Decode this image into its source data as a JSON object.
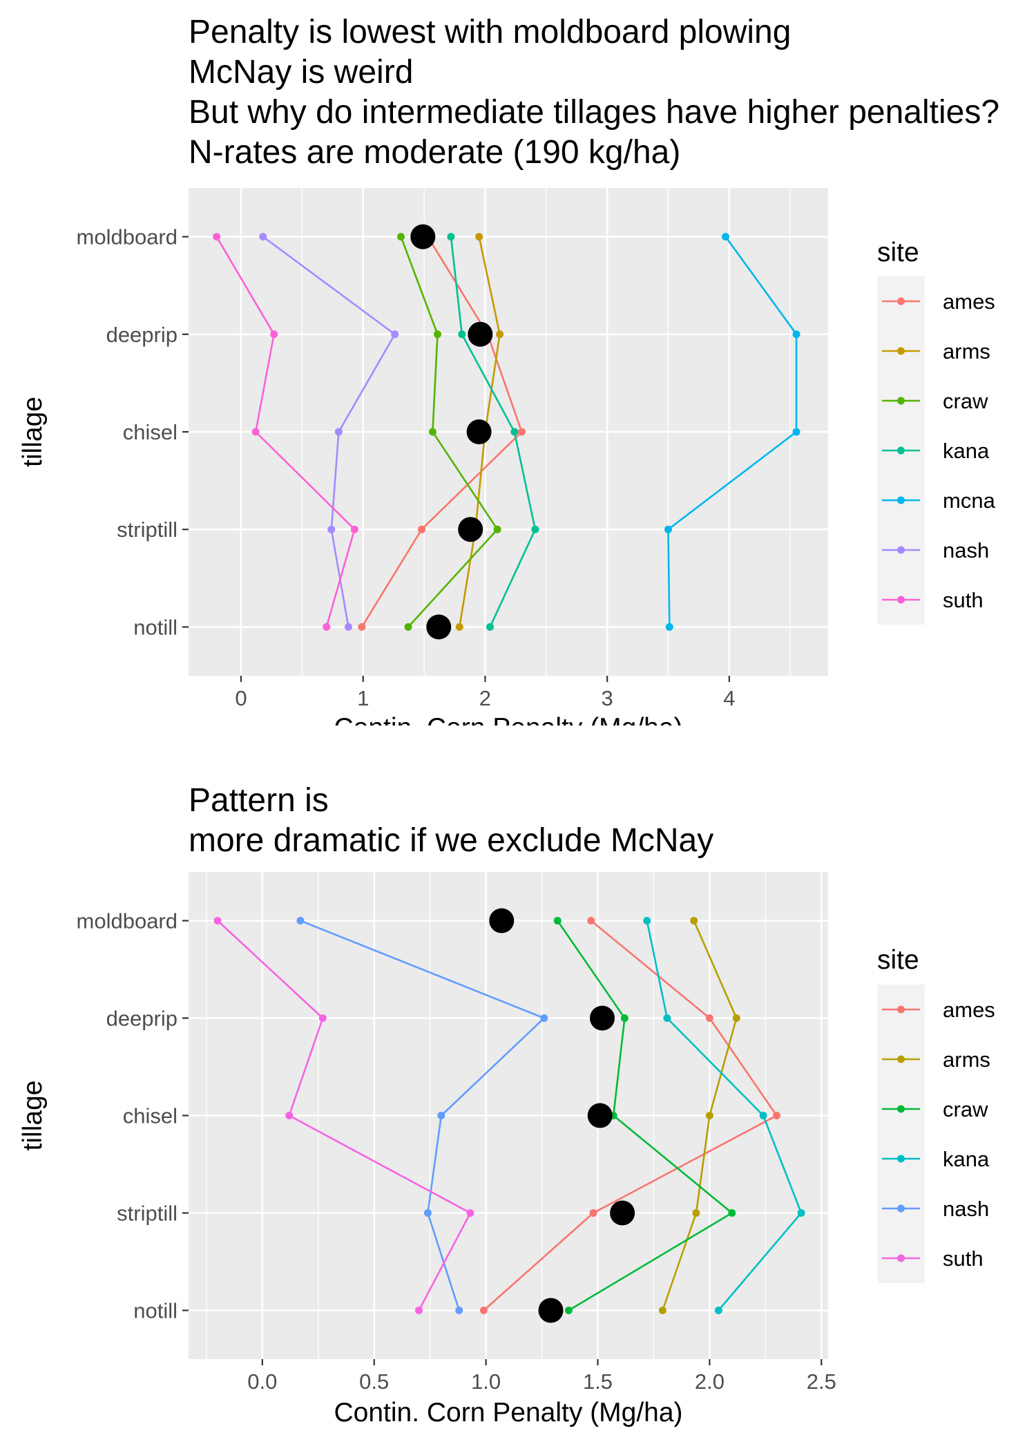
{
  "chart_data": [
    {
      "type": "line",
      "title": "Penalty is lowest with moldboard plowing\nMcNay is weird\nBut why do intermediate tillages have higher penalties?\nN-rates are moderate (190 kg/ha)",
      "xlabel": "Contin. Corn Penalty (Mg/ha)",
      "ylabel": "tillage",
      "categories": [
        "moldboard",
        "deeprip",
        "chisel",
        "striptill",
        "notill"
      ],
      "xlim": [
        -0.43,
        4.81
      ],
      "xticks": [
        0,
        1,
        2,
        3,
        4
      ],
      "xtick_labels": [
        "0",
        "1",
        "2",
        "3",
        "4"
      ],
      "grid": true,
      "legend": {
        "title": "site",
        "position": "right"
      },
      "series": [
        {
          "name": "ames",
          "color": "#F8766D",
          "values": [
            1.53,
            2.02,
            2.3,
            1.48,
            0.99
          ]
        },
        {
          "name": "arms",
          "color": "#C49A00",
          "values": [
            1.95,
            2.12,
            2.0,
            1.92,
            1.79
          ]
        },
        {
          "name": "craw",
          "color": "#53B400",
          "values": [
            1.31,
            1.61,
            1.57,
            2.1,
            1.37
          ]
        },
        {
          "name": "kana",
          "color": "#00C094",
          "values": [
            1.72,
            1.81,
            2.24,
            2.41,
            2.04
          ]
        },
        {
          "name": "mcna",
          "color": "#00B6EB",
          "values": [
            3.97,
            4.55,
            4.55,
            3.5,
            3.51
          ]
        },
        {
          "name": "nash",
          "color": "#A58AFF",
          "values": [
            0.18,
            1.26,
            0.8,
            0.74,
            0.88
          ]
        },
        {
          "name": "suth",
          "color": "#FB61D7",
          "values": [
            -0.2,
            0.27,
            0.12,
            0.93,
            0.7
          ]
        }
      ],
      "mean_points": {
        "color": "#000000",
        "values": [
          1.49,
          1.96,
          1.95,
          1.88,
          1.62
        ]
      }
    },
    {
      "type": "line",
      "title": "Pattern is\nmore dramatic if we exclude McNay",
      "xlabel": "Contin. Corn Penalty (Mg/ha)",
      "ylabel": "tillage",
      "categories": [
        "moldboard",
        "deeprip",
        "chisel",
        "striptill",
        "notill"
      ],
      "xlim": [
        -0.33,
        2.53
      ],
      "xticks": [
        0,
        0.5,
        1,
        1.5,
        2,
        2.5
      ],
      "xtick_labels": [
        "0.0",
        "0.5",
        "1.0",
        "1.5",
        "2.0",
        "2.5"
      ],
      "grid": true,
      "legend": {
        "title": "site",
        "position": "right"
      },
      "series": [
        {
          "name": "ames",
          "color": "#F8766D",
          "values": [
            1.47,
            2.0,
            2.3,
            1.48,
            0.99
          ]
        },
        {
          "name": "arms",
          "color": "#B79F00",
          "values": [
            1.93,
            2.12,
            2.0,
            1.94,
            1.79
          ]
        },
        {
          "name": "craw",
          "color": "#00BA38",
          "values": [
            1.32,
            1.62,
            1.57,
            2.1,
            1.37
          ]
        },
        {
          "name": "kana",
          "color": "#00BFC4",
          "values": [
            1.72,
            1.81,
            2.24,
            2.41,
            2.04
          ]
        },
        {
          "name": "nash",
          "color": "#619CFF",
          "values": [
            0.17,
            1.26,
            0.8,
            0.74,
            0.88
          ]
        },
        {
          "name": "suth",
          "color": "#F564E3",
          "values": [
            -0.2,
            0.27,
            0.12,
            0.93,
            0.7
          ]
        }
      ],
      "mean_points": {
        "color": "#000000",
        "values": [
          1.07,
          1.52,
          1.51,
          1.61,
          1.29
        ]
      }
    }
  ]
}
